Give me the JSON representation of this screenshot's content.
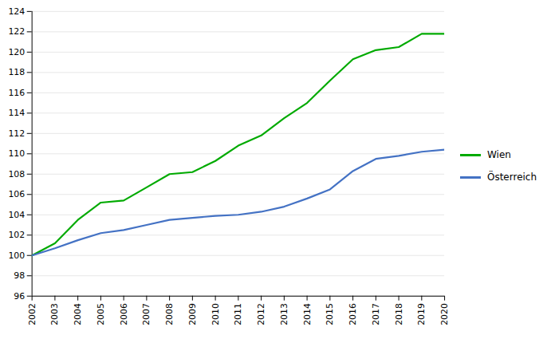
{
  "chart_data": {
    "type": "line",
    "x": [
      2002,
      2003,
      2004,
      2005,
      2006,
      2007,
      2008,
      2009,
      2010,
      2011,
      2012,
      2013,
      2014,
      2015,
      2016,
      2017,
      2018,
      2019,
      2020
    ],
    "series": [
      {
        "name": "Wien",
        "color": "#00aa00",
        "values": [
          100.0,
          101.2,
          103.5,
          105.2,
          105.4,
          106.7,
          108.0,
          108.2,
          109.3,
          110.8,
          111.8,
          113.5,
          115.0,
          117.2,
          119.3,
          120.2,
          120.5,
          121.8,
          121.8
        ]
      },
      {
        "name": "Österreich",
        "color": "#4472c4",
        "values": [
          100.0,
          100.7,
          101.5,
          102.2,
          102.5,
          103.0,
          103.5,
          103.7,
          103.9,
          104.0,
          104.3,
          104.8,
          105.6,
          106.5,
          108.3,
          109.5,
          109.8,
          110.2,
          110.4
        ]
      }
    ],
    "xlim": [
      2002,
      2020
    ],
    "xticks": [
      2002,
      2003,
      2004,
      2005,
      2006,
      2007,
      2008,
      2009,
      2010,
      2011,
      2012,
      2013,
      2014,
      2015,
      2016,
      2017,
      2018,
      2019,
      2020
    ],
    "ylim": [
      96,
      124
    ],
    "yticks": [
      96,
      98,
      100,
      102,
      104,
      106,
      108,
      110,
      112,
      114,
      116,
      118,
      120,
      122,
      124
    ],
    "grid": true,
    "legend": "right"
  }
}
